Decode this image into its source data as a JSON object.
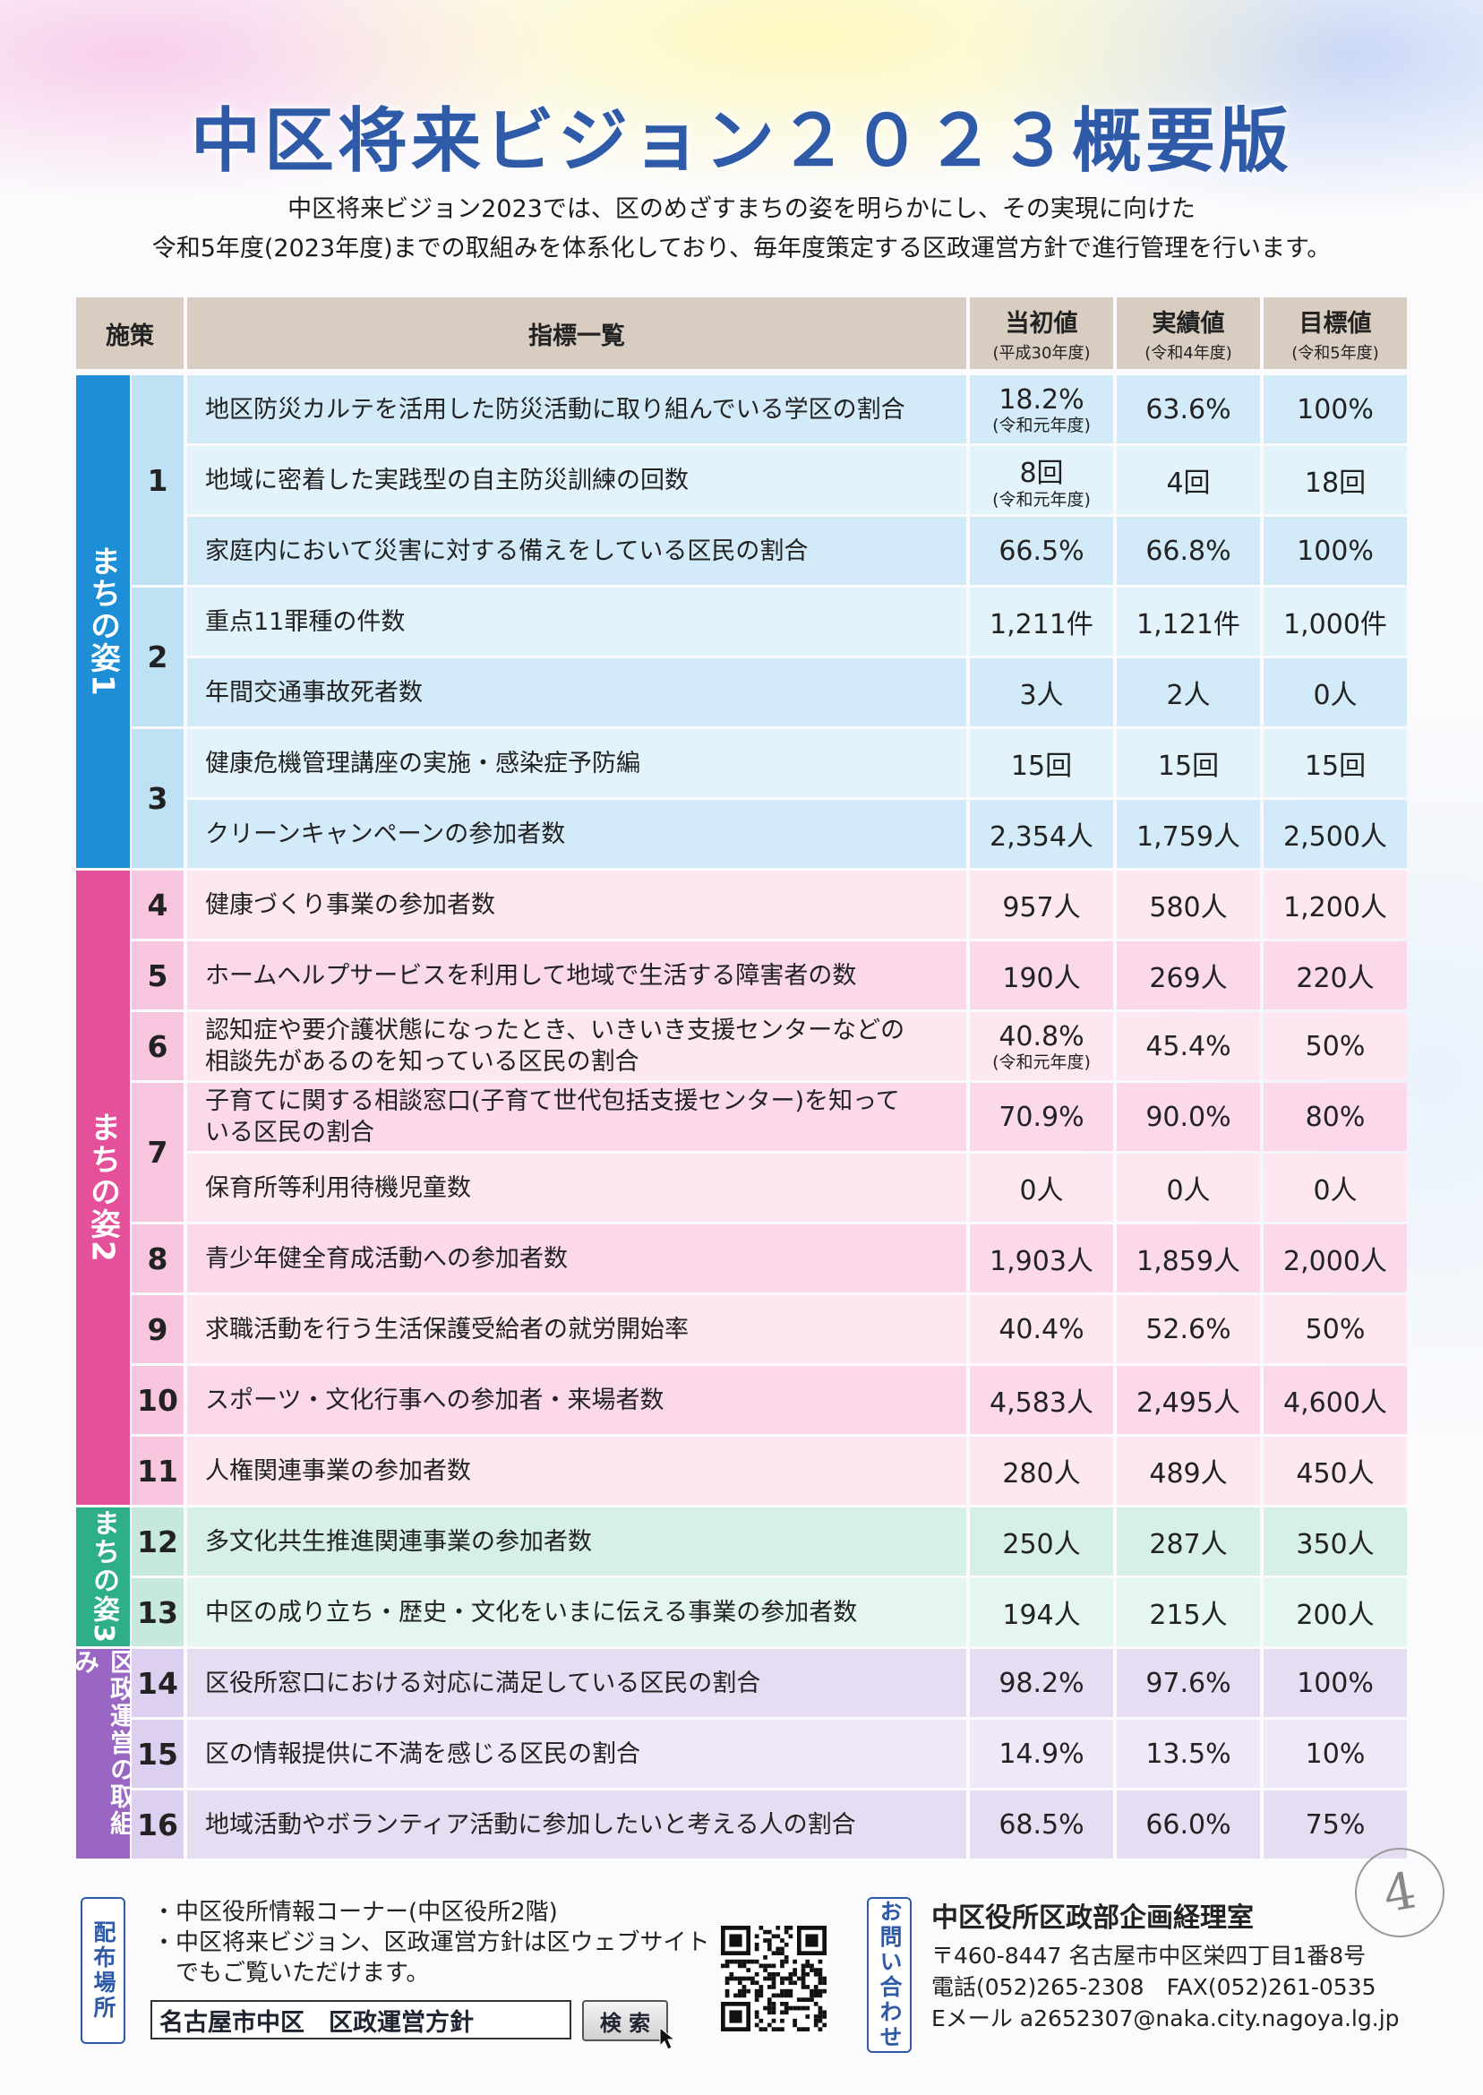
{
  "title": "中区将来ビジョン２０２３概要版",
  "intro": [
    "中区将来ビジョン2023では、区のめざすまちの姿を明らかにし、その実現に向けた",
    "令和5年度(2023年度)までの取組みを体系化しており、毎年度策定する区政運営方針で進行管理を行います。"
  ],
  "table": {
    "headers": {
      "policy": "施策",
      "indicators": "指標一覧",
      "initial": "当初値",
      "initial_sub": "(平成30年度)",
      "actual": "実績値",
      "actual_sub": "(令和4年度)",
      "target": "目標値",
      "target_sub": "(令和5年度)"
    },
    "groups": [
      {
        "label": "まちの姿1",
        "color": "#1e8fd6"
      },
      {
        "label": "まちの姿2",
        "color": "#e4509a"
      },
      {
        "label": "まちの姿3",
        "color": "#2fae8a"
      },
      {
        "label": "区政運営の取組み",
        "color": "#9966c4"
      }
    ],
    "policies": [
      "1",
      "2",
      "3",
      "4",
      "5",
      "6",
      "7",
      "8",
      "9",
      "10",
      "11",
      "12",
      "13",
      "14",
      "15",
      "16"
    ],
    "rows": [
      {
        "lines": [
          "地区防災カルテを活用した防災活動に取り組んでいる学区の割合"
        ],
        "initial": "18.2%",
        "initial_note": "(令和元年度)",
        "actual": "63.6%",
        "target": "100%"
      },
      {
        "lines": [
          "地域に密着した実践型の自主防災訓練の回数"
        ],
        "initial": "8回",
        "initial_note": "(令和元年度)",
        "actual": "4回",
        "target": "18回"
      },
      {
        "lines": [
          "家庭内において災害に対する備えをしている区民の割合"
        ],
        "initial": "66.5%",
        "initial_note": "",
        "actual": "66.8%",
        "target": "100%"
      },
      {
        "lines": [
          "重点11罪種の件数"
        ],
        "initial": "1,211件",
        "initial_note": "",
        "actual": "1,121件",
        "target": "1,000件"
      },
      {
        "lines": [
          "年間交通事故死者数"
        ],
        "initial": "3人",
        "initial_note": "",
        "actual": "2人",
        "target": "0人"
      },
      {
        "lines": [
          "健康危機管理講座の実施・感染症予防編"
        ],
        "initial": "15回",
        "initial_note": "",
        "actual": "15回",
        "target": "15回"
      },
      {
        "lines": [
          "クリーンキャンペーンの参加者数"
        ],
        "initial": "2,354人",
        "initial_note": "",
        "actual": "1,759人",
        "target": "2,500人"
      },
      {
        "lines": [
          "健康づくり事業の参加者数"
        ],
        "initial": "957人",
        "initial_note": "",
        "actual": "580人",
        "target": "1,200人"
      },
      {
        "lines": [
          "ホームヘルプサービスを利用して地域で生活する障害者の数"
        ],
        "initial": "190人",
        "initial_note": "",
        "actual": "269人",
        "target": "220人"
      },
      {
        "lines": [
          "認知症や要介護状態になったとき、いきいき支援センターなどの",
          "相談先があるのを知っている区民の割合"
        ],
        "initial": "40.8%",
        "initial_note": "(令和元年度)",
        "actual": "45.4%",
        "target": "50%"
      },
      {
        "lines": [
          "子育てに関する相談窓口(子育て世代包括支援センター)を知って",
          "いる区民の割合"
        ],
        "initial": "70.9%",
        "initial_note": "",
        "actual": "90.0%",
        "target": "80%"
      },
      {
        "lines": [
          "保育所等利用待機児童数"
        ],
        "initial": "0人",
        "initial_note": "",
        "actual": "0人",
        "target": "0人"
      },
      {
        "lines": [
          "青少年健全育成活動への参加者数"
        ],
        "initial": "1,903人",
        "initial_note": "",
        "actual": "1,859人",
        "target": "2,000人"
      },
      {
        "lines": [
          "求職活動を行う生活保護受給者の就労開始率"
        ],
        "initial": "40.4%",
        "initial_note": "",
        "actual": "52.6%",
        "target": "50%"
      },
      {
        "lines": [
          "スポーツ・文化行事への参加者・来場者数"
        ],
        "initial": "4,583人",
        "initial_note": "",
        "actual": "2,495人",
        "target": "4,600人"
      },
      {
        "lines": [
          "人権関連事業の参加者数"
        ],
        "initial": "280人",
        "initial_note": "",
        "actual": "489人",
        "target": "450人"
      },
      {
        "lines": [
          "多文化共生推進関連事業の参加者数"
        ],
        "initial": "250人",
        "initial_note": "",
        "actual": "287人",
        "target": "350人"
      },
      {
        "lines": [
          "中区の成り立ち・歴史・文化をいまに伝える事業の参加者数"
        ],
        "initial": "194人",
        "initial_note": "",
        "actual": "215人",
        "target": "200人"
      },
      {
        "lines": [
          "区役所窓口における対応に満足している区民の割合"
        ],
        "initial": "98.2%",
        "initial_note": "",
        "actual": "97.6%",
        "target": "100%"
      },
      {
        "lines": [
          "区の情報提供に不満を感じる区民の割合"
        ],
        "initial": "14.9%",
        "initial_note": "",
        "actual": "13.5%",
        "target": "10%"
      },
      {
        "lines": [
          "地域活動やボランティア活動に参加したいと考える人の割合"
        ],
        "initial": "68.5%",
        "initial_note": "",
        "actual": "66.0%",
        "target": "75%"
      }
    ]
  },
  "footer": {
    "distribution_label": "配布場所",
    "distribution_lines": [
      "・中区役所情報コーナー(中区役所2階)",
      "・中区将来ビジョン、区政運営方針は区ウェブサイト",
      "　でもご覧いただけます。"
    ],
    "search_value": "名古屋市中区　区政運営方針",
    "search_button": "検 索",
    "contact_label": "お問い合わせ",
    "contact_org": "中区役所区政部企画経理室",
    "contact_address": "〒460-8447 名古屋市中区栄四丁目1番8号",
    "contact_phone": "電話(052)265-2308　FAX(052)261-0535",
    "contact_email": "Eメール a2652307@naka.city.nagoya.lg.jp",
    "page_mark": "4"
  }
}
